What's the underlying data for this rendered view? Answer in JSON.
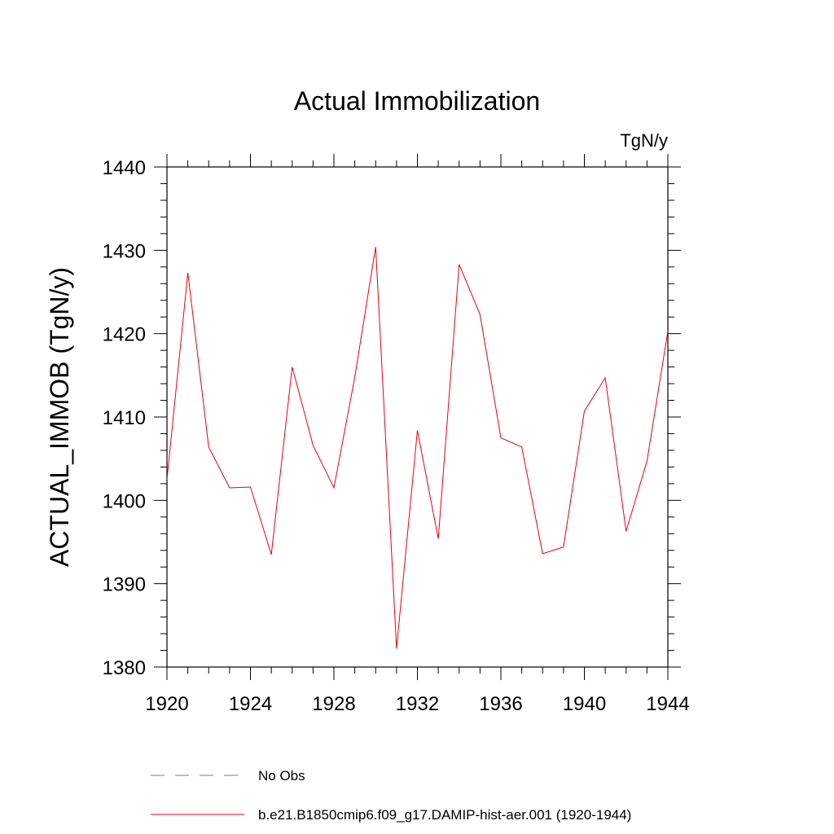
{
  "chart_data": {
    "type": "line",
    "title": "Actual Immobilization",
    "units": "TgN/y",
    "xlabel": "",
    "ylabel": "ACTUAL_IMMOB  (TgN/y)",
    "xlim": [
      1920,
      1944
    ],
    "ylim": [
      1380,
      1440
    ],
    "x_ticks": [
      1920,
      1924,
      1928,
      1932,
      1936,
      1940,
      1944
    ],
    "y_ticks": [
      1380,
      1390,
      1400,
      1410,
      1420,
      1430,
      1440
    ],
    "grid": false,
    "legend_position": "bottom",
    "series": [
      {
        "name": "b.e21.B1850cmip6.f09_g17.DAMIP-hist-aer.001 (1920-1944)",
        "color": "#e8000b",
        "dash": "solid",
        "x": [
          1920,
          1921,
          1922,
          1923,
          1924,
          1925,
          1926,
          1927,
          1928,
          1929,
          1930,
          1931,
          1932,
          1933,
          1934,
          1935,
          1936,
          1937,
          1938,
          1939,
          1940,
          1941,
          1942,
          1943,
          1944
        ],
        "y": [
          1402.5,
          1427.3,
          1406.4,
          1401.5,
          1401.6,
          1393.5,
          1416.0,
          1406.6,
          1401.5,
          1414.8,
          1430.4,
          1382.2,
          1408.4,
          1395.4,
          1428.3,
          1422.3,
          1407.5,
          1406.4,
          1393.6,
          1394.4,
          1410.7,
          1414.7,
          1396.3,
          1404.7,
          1420.3
        ]
      }
    ],
    "legend": [
      {
        "label": "No Obs",
        "color": "#7b68ee",
        "dash": "dashed"
      },
      {
        "label": "b.e21.B1850cmip6.f09_g17.DAMIP-hist-aer.001 (1920-1944)",
        "color": "#e8000b",
        "dash": "solid"
      }
    ]
  }
}
